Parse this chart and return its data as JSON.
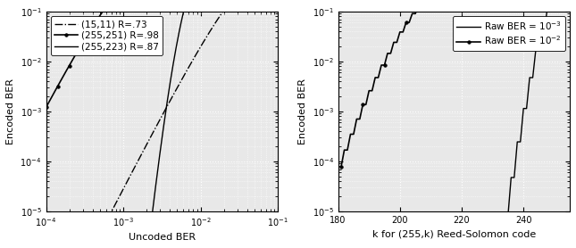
{
  "left": {
    "xlim": [
      0.0001,
      0.1
    ],
    "ylim": [
      1e-05,
      0.1
    ],
    "xlabel": "Uncoded BER",
    "ylabel": "Encoded BER",
    "codes": [
      {
        "n": 15,
        "k": 11,
        "label": "(15,11) R=.73",
        "ls": "-.",
        "marker": "none",
        "lw": 1.0
      },
      {
        "n": 255,
        "k": 251,
        "label": "(255,251) R=.98",
        "ls": "-",
        "marker": "o",
        "lw": 1.2
      },
      {
        "n": 255,
        "k": 223,
        "label": "(255,223) R=.87",
        "ls": "-",
        "marker": "none",
        "lw": 1.0
      }
    ]
  },
  "right": {
    "xlim": [
      180,
      255
    ],
    "ylim": [
      1e-05,
      0.1
    ],
    "xlabel": "k for (255,k) Reed-Solomon code",
    "ylabel": "Encoded BER",
    "n": 255,
    "raw_bers": [
      0.001,
      0.01
    ],
    "legends": [
      {
        "label": "Raw BER = $10^{-3}$",
        "ls": "-",
        "marker": "none",
        "lw": 1.0
      },
      {
        "label": "Raw BER = $10^{-2}$",
        "ls": "-",
        "marker": "o",
        "lw": 1.2
      }
    ]
  },
  "bg_color": "#e8e8e8",
  "dot_color": "#ffffff",
  "line_color": "#000000",
  "label_fontsize": 8,
  "tick_fontsize": 7,
  "legend_fontsize": 7.5
}
